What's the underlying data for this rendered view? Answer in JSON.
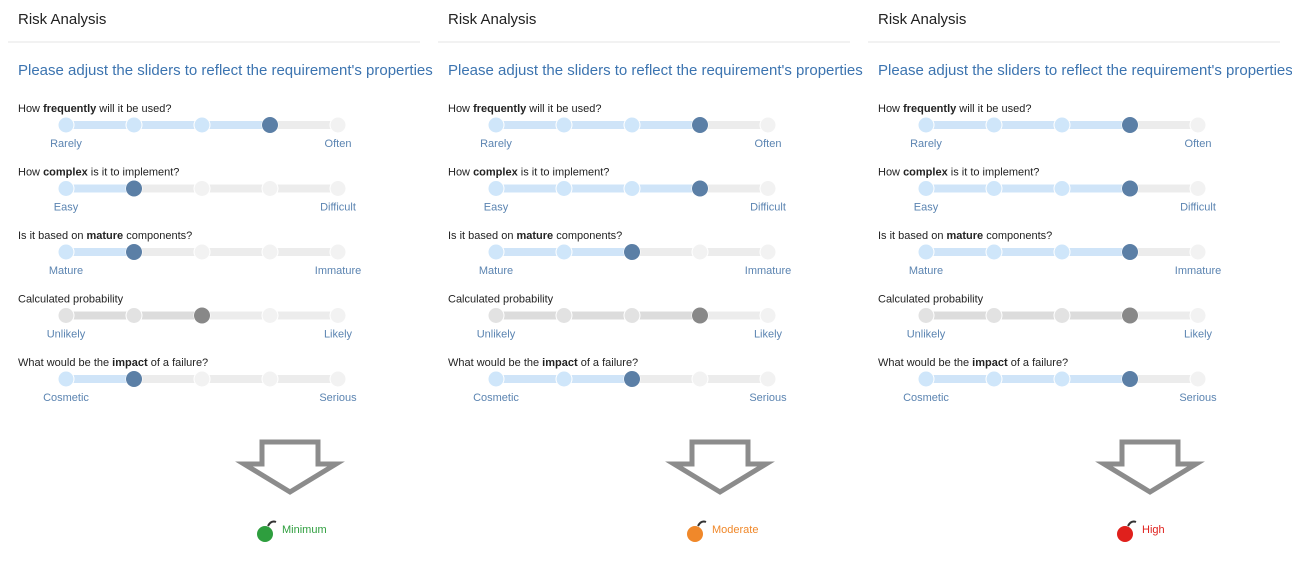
{
  "slider_range": [
    0,
    4
  ],
  "panels": [
    {
      "header": "Risk Analysis",
      "subtitle": "Please adjust the sliders to reflect the requirement's properties",
      "sliders": [
        {
          "question": {
            "before": "How ",
            "bold": "frequently",
            "after": " will it be used?"
          },
          "left": "Rarely",
          "right": "Often",
          "value": 3,
          "color": "#5b7fa6"
        },
        {
          "question": {
            "before": "How ",
            "bold": "complex",
            "after": " is it to implement?"
          },
          "left": "Easy",
          "right": "Difficult",
          "value": 1,
          "color": "#5b7fa6"
        },
        {
          "question": {
            "before": "Is it based on ",
            "bold": "mature",
            "after": " components?"
          },
          "left": "Mature",
          "right": "Immature",
          "value": 1,
          "color": "#5b7fa6"
        },
        {
          "question": {
            "before": "Calculated probability"
          },
          "left": "Unlikely",
          "right": "Likely",
          "value": 2,
          "color": "#888888"
        },
        {
          "question": {
            "before": "What would be the ",
            "bold": "impact",
            "after": " of a failure?"
          },
          "left": "Cosmetic",
          "right": "Serious",
          "value": 1,
          "color": "#5b7fa6"
        }
      ],
      "result": {
        "label": "Minimum",
        "color": "#2e9e3e"
      }
    },
    {
      "header": "Risk Analysis",
      "subtitle": "Please adjust the sliders to reflect the requirement's properties",
      "sliders": [
        {
          "question": {
            "before": "How ",
            "bold": "frequently",
            "after": " will it be used?"
          },
          "left": "Rarely",
          "right": "Often",
          "value": 3,
          "color": "#5b7fa6"
        },
        {
          "question": {
            "before": "How ",
            "bold": "complex",
            "after": " is it to implement?"
          },
          "left": "Easy",
          "right": "Difficult",
          "value": 3,
          "color": "#5b7fa6"
        },
        {
          "question": {
            "before": "Is it based on ",
            "bold": "mature",
            "after": " components?"
          },
          "left": "Mature",
          "right": "Immature",
          "value": 2,
          "color": "#5b7fa6"
        },
        {
          "question": {
            "before": "Calculated probability"
          },
          "left": "Unlikely",
          "right": "Likely",
          "value": 3,
          "color": "#888888"
        },
        {
          "question": {
            "before": "What would be the ",
            "bold": "impact",
            "after": " of a failure?"
          },
          "left": "Cosmetic",
          "right": "Serious",
          "value": 2,
          "color": "#5b7fa6"
        }
      ],
      "result": {
        "label": "Moderate",
        "color": "#f0882a"
      }
    },
    {
      "header": "Risk Analysis",
      "subtitle": "Please adjust the sliders to reflect the requirement's properties",
      "sliders": [
        {
          "question": {
            "before": "How ",
            "bold": "frequently",
            "after": " will it be used?"
          },
          "left": "Rarely",
          "right": "Often",
          "value": 3,
          "color": "#5b7fa6"
        },
        {
          "question": {
            "before": "How ",
            "bold": "complex",
            "after": " is it to implement?"
          },
          "left": "Easy",
          "right": "Difficult",
          "value": 3,
          "color": "#5b7fa6"
        },
        {
          "question": {
            "before": "Is it based on ",
            "bold": "mature",
            "after": " components?"
          },
          "left": "Mature",
          "right": "Immature",
          "value": 3,
          "color": "#5b7fa6"
        },
        {
          "question": {
            "before": "Calculated probability"
          },
          "left": "Unlikely",
          "right": "Likely",
          "value": 3,
          "color": "#888888"
        },
        {
          "question": {
            "before": "What would be the ",
            "bold": "impact",
            "after": " of a failure?"
          },
          "left": "Cosmetic",
          "right": "Serious",
          "value": 3,
          "color": "#5b7fa6"
        }
      ],
      "result": {
        "label": "High",
        "color": "#e0201c"
      }
    }
  ]
}
